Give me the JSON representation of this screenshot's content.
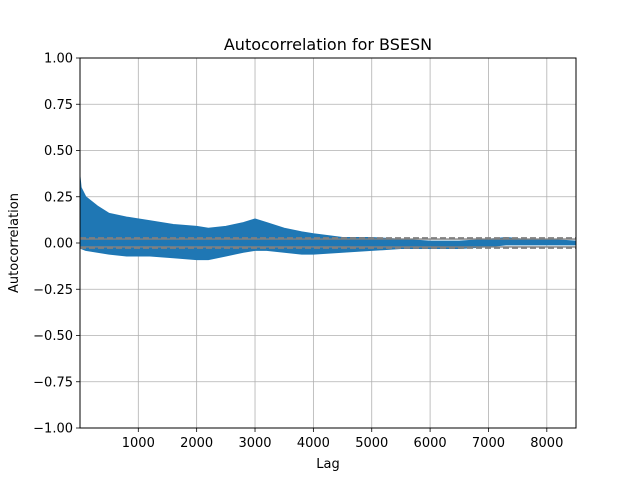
{
  "chart_data": {
    "type": "line",
    "title": "Autocorrelation for BSESN",
    "xlabel": "Lag",
    "ylabel": "Autocorrelation",
    "xlim": [
      1,
      8500
    ],
    "ylim": [
      -1.0,
      1.0
    ],
    "x_ticks": [
      1000,
      2000,
      3000,
      4000,
      5000,
      6000,
      7000,
      8000
    ],
    "y_ticks": [
      -1.0,
      -0.75,
      -0.5,
      -0.25,
      0.0,
      0.25,
      0.5,
      0.75,
      1.0
    ],
    "y_tick_labels": [
      "−1.00",
      "−0.75",
      "−0.50",
      "−0.25",
      "0.00",
      "0.25",
      "0.50",
      "0.75",
      "1.00"
    ],
    "grid": true,
    "series": [
      {
        "color": "#1f77b4",
        "envelope": {
          "x": [
            1,
            20,
            100,
            300,
            500,
            800,
            1200,
            1600,
            2000,
            2200,
            2500,
            2800,
            3000,
            3200,
            3500,
            3800,
            4000,
            4500,
            5000,
            5500,
            6000,
            6500,
            7000,
            7300,
            7600,
            8000,
            8500
          ],
          "upper": [
            0.36,
            0.3,
            0.25,
            0.2,
            0.16,
            0.14,
            0.12,
            0.1,
            0.09,
            0.08,
            0.09,
            0.11,
            0.13,
            0.11,
            0.08,
            0.06,
            0.05,
            0.03,
            0.03,
            0.02,
            0.01,
            0.01,
            0.02,
            0.03,
            0.02,
            0.02,
            0.01
          ],
          "lower": [
            -0.02,
            -0.03,
            -0.04,
            -0.05,
            -0.06,
            -0.07,
            -0.07,
            -0.08,
            -0.09,
            -0.09,
            -0.07,
            -0.05,
            -0.04,
            -0.04,
            -0.05,
            -0.06,
            -0.06,
            -0.05,
            -0.04,
            -0.03,
            -0.03,
            -0.03,
            -0.02,
            -0.01,
            -0.01,
            -0.01,
            -0.01
          ]
        }
      }
    ],
    "confidence_bands": {
      "color": "#808080",
      "levels": [
        0.0213,
        -0.0213,
        0.0281,
        -0.0281
      ],
      "styles": [
        "solid",
        "solid",
        "dashed",
        "dashed"
      ]
    }
  }
}
